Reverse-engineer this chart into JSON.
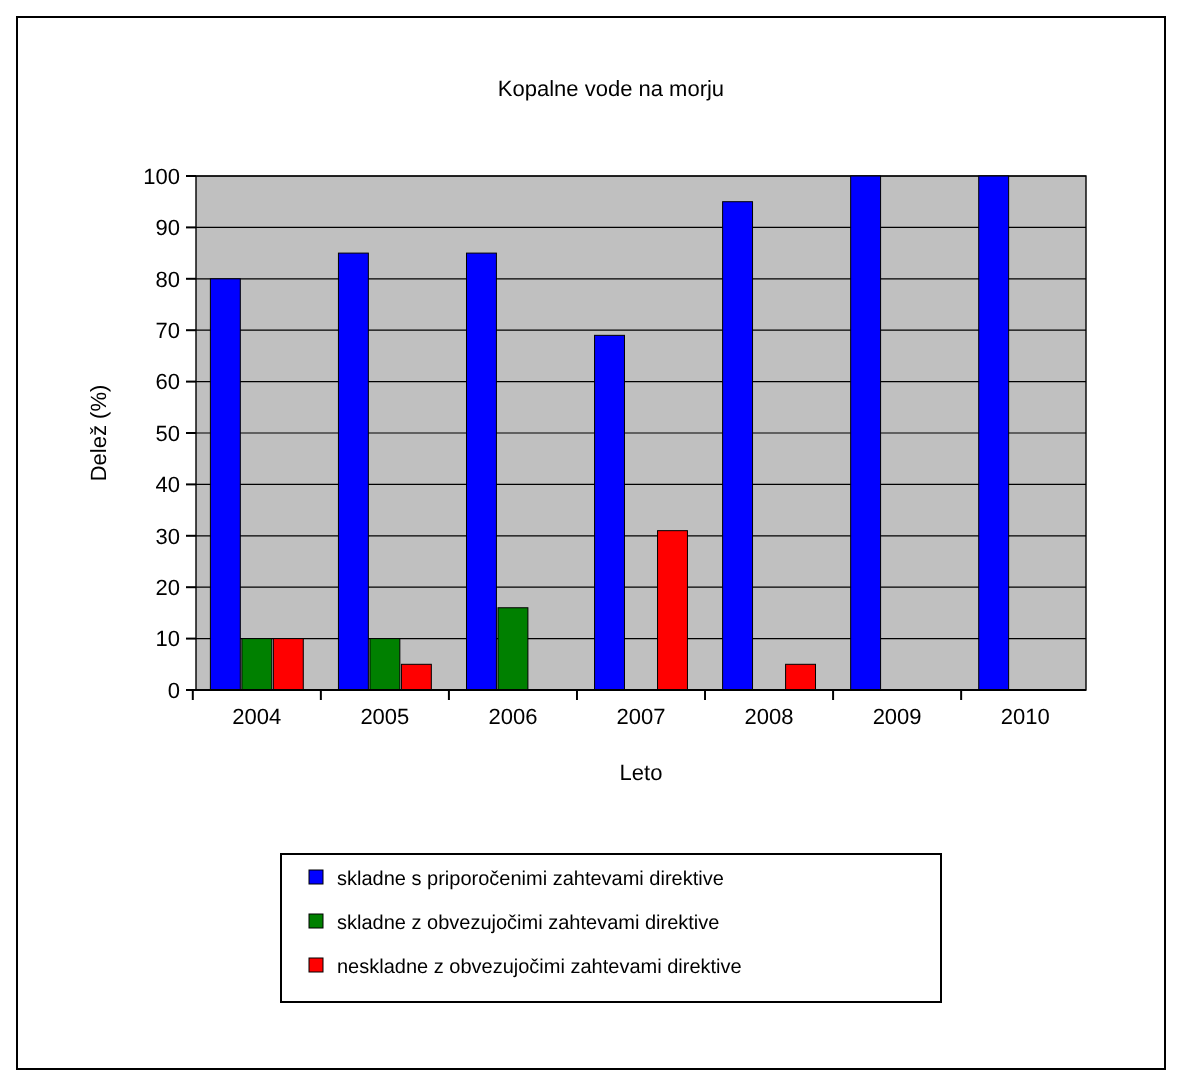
{
  "chart_data": {
    "type": "bar",
    "title": "Kopalne vode na morju",
    "xlabel": "Leto",
    "ylabel": "Delež (%)",
    "categories": [
      "2004",
      "2005",
      "2006",
      "2007",
      "2008",
      "2009",
      "2010"
    ],
    "series": [
      {
        "name": "skladne s priporočenimi zahtevami direktive",
        "color": "#0000ff",
        "values": [
          80,
          85,
          85,
          69,
          95,
          100,
          100
        ]
      },
      {
        "name": "skladne z obvezujočimi zahtevami direktive",
        "color": "#008000",
        "values": [
          10,
          10,
          16,
          0,
          0,
          0,
          0
        ]
      },
      {
        "name": "neskladne z obvezujočimi zahtevami direktive",
        "color": "#ff0000",
        "values": [
          10,
          5,
          0,
          31,
          5,
          0,
          0
        ]
      }
    ],
    "ylim": [
      0,
      100
    ],
    "yticks": [
      0,
      10,
      20,
      30,
      40,
      50,
      60,
      70,
      80,
      90,
      100
    ],
    "grid": "y",
    "legend": "bottom"
  }
}
